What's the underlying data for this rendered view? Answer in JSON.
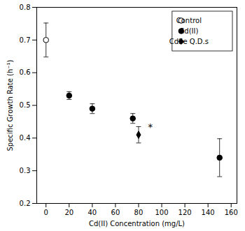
{
  "chart_data": {
    "type": "scatter",
    "xlabel": "Cd(II) Concentration (mg/L)",
    "ylabel": "Specific Growth Rate (h⁻¹)",
    "xlim": [
      -8,
      165
    ],
    "ylim": [
      0.2,
      0.8
    ],
    "xticks": [
      0,
      20,
      40,
      60,
      80,
      100,
      120,
      140,
      160
    ],
    "yticks": [
      0.2,
      0.3,
      0.4,
      0.5,
      0.6,
      0.7,
      0.8
    ],
    "legend": "upper right",
    "series": [
      {
        "name": "Control",
        "x": [
          0
        ],
        "values": [
          0.7
        ],
        "yerr": [
          0.052
        ],
        "color": "white",
        "marker": "circle"
      },
      {
        "name": "Cd(II)",
        "x": [
          20,
          40,
          75,
          150
        ],
        "values": [
          0.53,
          0.49,
          0.46,
          0.34
        ],
        "yerr": [
          0.012,
          0.015,
          0.015,
          0.058
        ],
        "color": "black",
        "marker": "circle"
      },
      {
        "name": "CdSe Q.D.s",
        "x": [
          80
        ],
        "values": [
          0.41
        ],
        "yerr": [
          0.025
        ],
        "color": "black",
        "marker": "diamond"
      }
    ],
    "annotations": [
      {
        "text": "*",
        "x": 88,
        "y": 0.432
      }
    ]
  }
}
